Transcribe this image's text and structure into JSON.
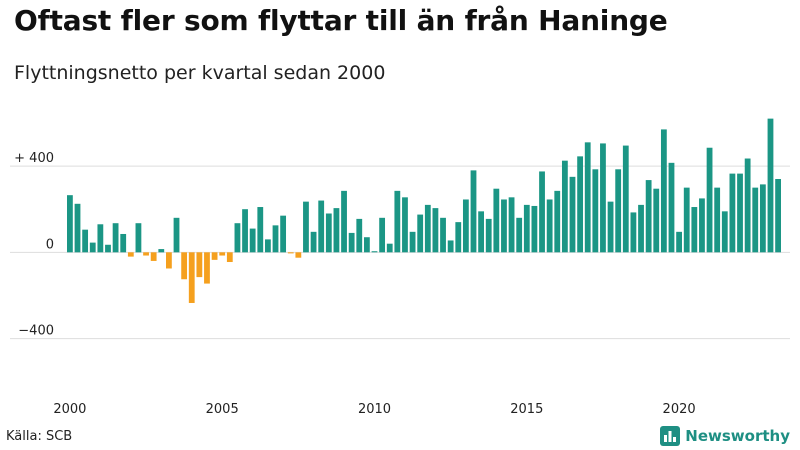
{
  "header": {
    "title": "Oftast fler som flyttar till än från Haninge",
    "subtitle": "Flyttningsnetto per kvartal sedan 2000"
  },
  "footer": {
    "source": "Källa: SCB",
    "brand": "Newsworthy"
  },
  "colors": {
    "positive": "#1b9685",
    "negative": "#f5a01e",
    "grid": "#dddddd",
    "brand": "#1e8f83"
  },
  "chart_data": {
    "type": "bar",
    "title": "Oftast fler som flyttar till än från Haninge",
    "subtitle": "Flyttningsnetto per kvartal sedan 2000",
    "xlabel": "",
    "ylabel": "",
    "ylim": [
      -620,
      660
    ],
    "x_start_year": 2000,
    "periods_per_year": 4,
    "x_ticks": [
      {
        "value": 2000,
        "label": "2000"
      },
      {
        "value": 2005,
        "label": "2005"
      },
      {
        "value": 2010,
        "label": "2010"
      },
      {
        "value": 2015,
        "label": "2015"
      },
      {
        "value": 2020,
        "label": "2020"
      }
    ],
    "y_ticks": [
      {
        "value": 400,
        "label": "+ 400"
      },
      {
        "value": 0,
        "label": "0"
      },
      {
        "value": -400,
        "label": "−400"
      }
    ],
    "grid": true,
    "legend": "none",
    "values": [
      265,
      225,
      105,
      45,
      130,
      35,
      135,
      85,
      -20,
      135,
      -15,
      -40,
      15,
      -75,
      160,
      -125,
      -235,
      -115,
      -145,
      -35,
      -15,
      -45,
      135,
      200,
      110,
      210,
      60,
      125,
      170,
      -5,
      -25,
      235,
      95,
      240,
      180,
      205,
      285,
      90,
      155,
      70,
      5,
      160,
      40,
      285,
      255,
      95,
      175,
      220,
      205,
      160,
      55,
      140,
      245,
      380,
      190,
      155,
      295,
      245,
      255,
      160,
      220,
      215,
      375,
      245,
      285,
      425,
      350,
      445,
      510,
      385,
      505,
      235,
      385,
      495,
      185,
      220,
      335,
      295,
      570,
      415,
      95,
      300,
      210,
      250,
      485,
      300,
      190,
      365,
      365,
      435,
      300,
      315,
      620,
      340
    ]
  }
}
